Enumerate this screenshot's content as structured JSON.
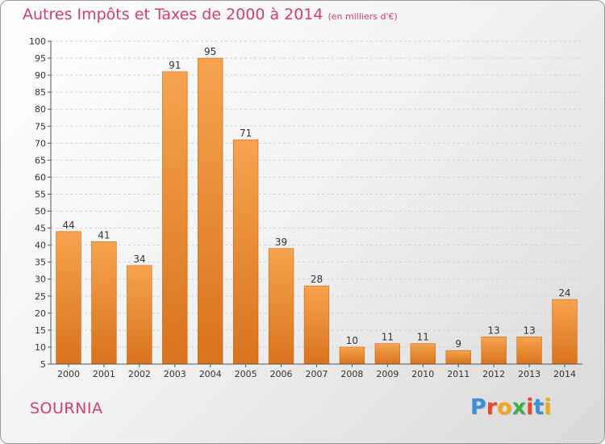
{
  "header": {
    "title": "Autres Impôts et Taxes de 2000 à 2014",
    "unit": "(en milliers d'€)"
  },
  "commune": "SOURNIA",
  "logo": {
    "text": "Proxiti",
    "colors": [
      "#3a8fd8",
      "#e9452f",
      "#f0a81a",
      "#3ab24a",
      "#e9452f",
      "#3a8fd8",
      "#f0a81a"
    ]
  },
  "colors": {
    "bar_top": "#f6a34f",
    "bar_bottom": "#d9731c",
    "title": "#d0406e",
    "axis": "#333333"
  },
  "chart_data": {
    "type": "bar",
    "title": "Autres Impôts et Taxes de 2000 à 2014",
    "ylabel": "",
    "xlabel": "",
    "categories": [
      "2000",
      "2001",
      "2002",
      "2003",
      "2004",
      "2005",
      "2006",
      "2007",
      "2008",
      "2009",
      "2010",
      "2011",
      "2012",
      "2013",
      "2014"
    ],
    "values": [
      44,
      41,
      34,
      91,
      95,
      71,
      39,
      28,
      10,
      11,
      11,
      9,
      13,
      13,
      24
    ],
    "ylim": [
      5,
      100
    ],
    "yticks": [
      5,
      10,
      15,
      20,
      25,
      30,
      35,
      40,
      45,
      50,
      55,
      60,
      65,
      70,
      75,
      80,
      85,
      90,
      95,
      100
    ],
    "grid": true,
    "data_labels": true
  }
}
